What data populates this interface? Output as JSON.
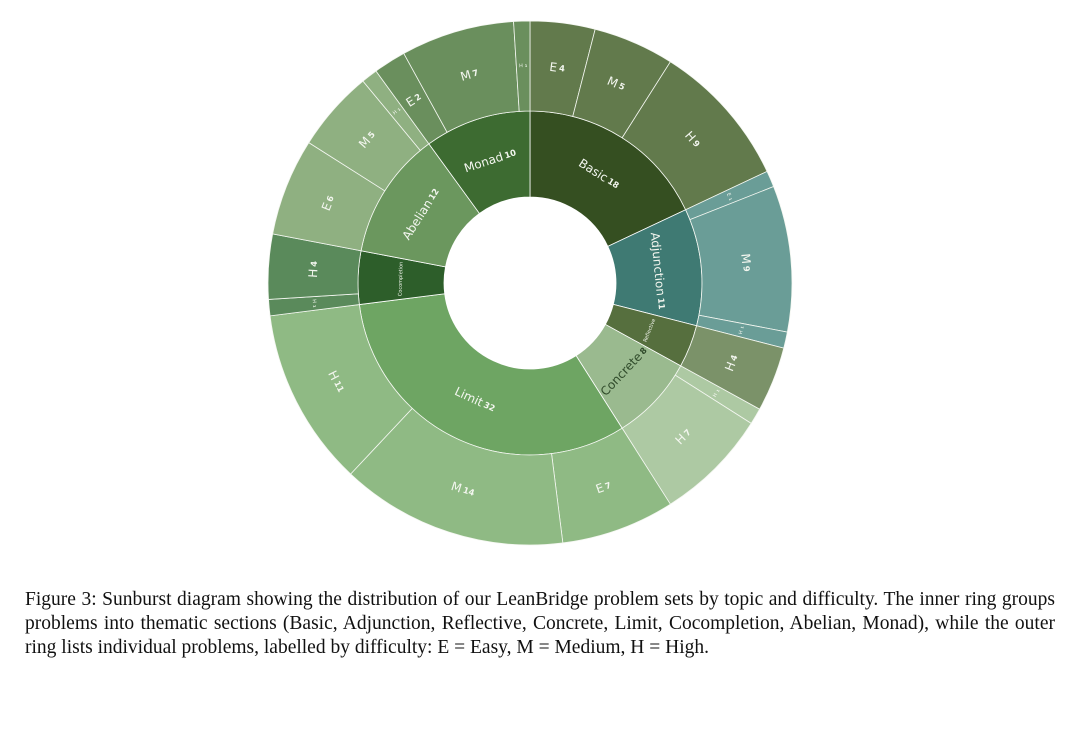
{
  "chart_data": {
    "type": "sunburst",
    "total": 100,
    "sections": [
      {
        "name": "Basic",
        "count": 18,
        "color": "#354f21",
        "outer_color": "#627a4c",
        "children": [
          {
            "label": "E",
            "value": 4
          },
          {
            "label": "M",
            "value": 5
          },
          {
            "label": "H",
            "value": 9
          }
        ]
      },
      {
        "name": "Adjunction",
        "count": 11,
        "color": "#3f7a73",
        "outer_color": "#6a9d97",
        "children": [
          {
            "label": "E",
            "value": 1
          },
          {
            "label": "M",
            "value": 9
          },
          {
            "label": "H",
            "value": 1
          }
        ]
      },
      {
        "name": "Reflective",
        "count": 4,
        "color": "#566f3e",
        "outer_color": "#7b9269",
        "children": [
          {
            "label": "H",
            "value": 4
          }
        ]
      },
      {
        "name": "Concrete",
        "count": 8,
        "color": "#9aba8f",
        "outer_color": "#adc9a3",
        "children": [
          {
            "label": "H",
            "value": 1
          },
          {
            "label": "H",
            "value": 7
          }
        ]
      },
      {
        "name": "Limit",
        "count": 32,
        "color": "#6ea563",
        "outer_color": "#8fba84",
        "children": [
          {
            "label": "E",
            "value": 7
          },
          {
            "label": "M",
            "value": 14
          },
          {
            "label": "H",
            "value": 11
          }
        ]
      },
      {
        "name": "Cocompletion",
        "count": 5,
        "color": "#2d5e2a",
        "outer_color": "#5a8a5b",
        "children": [
          {
            "label": "H",
            "value": 1
          },
          {
            "label": "H",
            "value": 4
          }
        ]
      },
      {
        "name": "Abelian",
        "count": 12,
        "color": "#6b975e",
        "outer_color": "#8fb081",
        "children": [
          {
            "label": "E",
            "value": 6
          },
          {
            "label": "M",
            "value": 5
          },
          {
            "label": "H",
            "value": 1
          }
        ]
      },
      {
        "name": "Monad",
        "count": 10,
        "color": "#3d6b31",
        "outer_color": "#6a8f5d",
        "children": [
          {
            "label": "E",
            "value": 2
          },
          {
            "label": "M",
            "value": 7
          },
          {
            "label": "H",
            "value": 1
          }
        ]
      }
    ]
  },
  "caption": "Figure 3: Sunburst diagram showing the distribution of our LeanBridge problem sets by topic and difficulty. The inner ring groups problems into thematic sections (Basic, Adjunction, Reflective, Concrete, Limit, Cocompletion, Abelian, Monad), while the outer ring lists individual problems, labelled by difficulty: E = Easy, M = Medium, H = High."
}
